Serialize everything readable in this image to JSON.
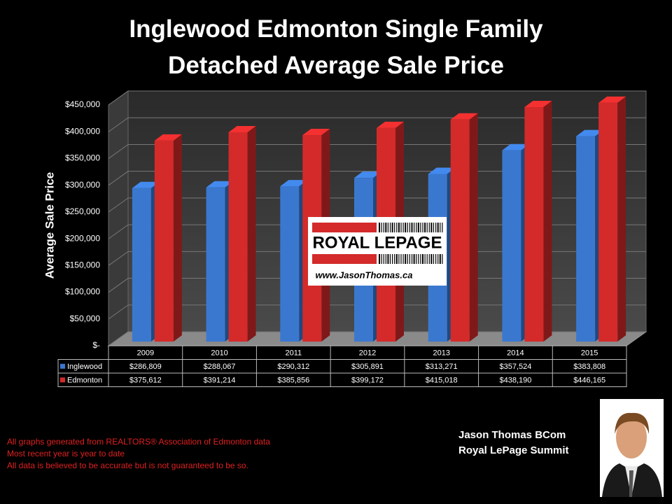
{
  "chart_data": {
    "type": "bar3d",
    "title": "Inglewood Edmonton Single Family Detached Average Sale Price",
    "y_label": "Average Sale Price",
    "categories": [
      "2009",
      "2010",
      "2011",
      "2012",
      "2013",
      "2014",
      "2015"
    ],
    "series": [
      {
        "name": "Inglewood",
        "color": "#3a78d0",
        "values": [
          286809,
          288067,
          290312,
          305891,
          313271,
          357524,
          383808
        ],
        "value_labels": [
          "$286,809",
          "$288,067",
          "$290,312",
          "$305,891",
          "$313,271",
          "$357,524",
          "$383,808"
        ]
      },
      {
        "name": "Edmonton",
        "color": "#d42a2a",
        "values": [
          375612,
          391214,
          385856,
          399172,
          415018,
          438190,
          446165
        ],
        "value_labels": [
          "$375,612",
          "$391,214",
          "$385,856",
          "$399,172",
          "$415,018",
          "$438,190",
          "$446,165"
        ]
      }
    ],
    "ylim": [
      0,
      450000
    ],
    "yticks": [
      {
        "value": 0,
        "label": "$-"
      },
      {
        "value": 50000,
        "label": "$50,000"
      },
      {
        "value": 100000,
        "label": "$100,000"
      },
      {
        "value": 150000,
        "label": "$150,000"
      },
      {
        "value": 200000,
        "label": "$200,000"
      },
      {
        "value": 250000,
        "label": "$250,000"
      },
      {
        "value": 300000,
        "label": "$300,000"
      },
      {
        "value": 350000,
        "label": "$350,000"
      },
      {
        "value": 400000,
        "label": "$400,000"
      },
      {
        "value": 450000,
        "label": "$450,000"
      }
    ],
    "grid": true
  },
  "logo": {
    "brand": "ROYAL LEPAGE",
    "url": "www.JasonThomas.ca"
  },
  "footnotes": [
    "All graphs generated from REALTORS® Association of Edmonton data",
    "Most recent year is year to date",
    "All data is believed to be accurate but is not guaranteed to be so."
  ],
  "agent": {
    "name": "Jason Thomas BCom",
    "company": "Royal LePage Summit"
  }
}
